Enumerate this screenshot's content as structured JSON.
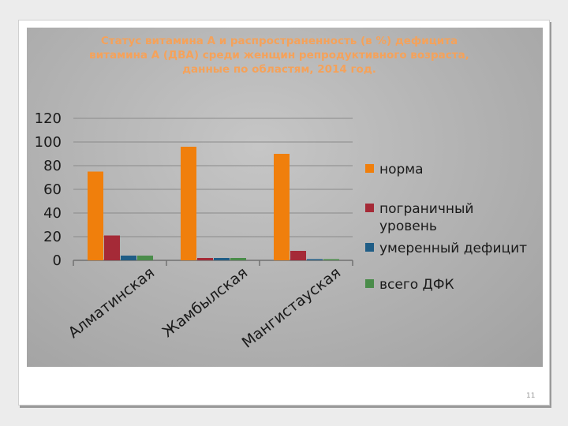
{
  "slide": {
    "page_number": "11"
  },
  "chart_data": {
    "type": "bar",
    "title": "Статус витамина А и распространенность (в %) дефицита витамина А (ДВА) среди женщин репродуктивного возраста, данные по областям, 2014 год.",
    "title_lines": [
      "Статус витамина А и распространенность (в %) дефицита",
      "витамина А (ДВА) среди женщин репродуктивного возраста,",
      "данные по областям, 2014 год."
    ],
    "categories": [
      "Алматинская",
      "Жамбылская",
      "Мангистауская"
    ],
    "series": [
      {
        "name": "норма",
        "name_lines": [
          "норма"
        ],
        "color": "#f07f0c",
        "values": [
          75,
          96,
          90
        ]
      },
      {
        "name": "пограничный уровень",
        "name_lines": [
          "пограничный",
          "уровень"
        ],
        "color": "#a52a37",
        "values": [
          21,
          2,
          8
        ]
      },
      {
        "name": "умеренный дефицит",
        "name_lines": [
          "умеренный дефицит"
        ],
        "color": "#1f5d86",
        "values": [
          4,
          2,
          1
        ]
      },
      {
        "name": "всего ДФК",
        "name_lines": [
          "всего ДФК"
        ],
        "color": "#4a8c4a",
        "values": [
          4,
          2,
          1
        ]
      }
    ],
    "yticks": [
      0,
      20,
      40,
      60,
      80,
      100,
      120
    ],
    "ylim": [
      0,
      120
    ],
    "grid": true,
    "legend_position": "right",
    "colors": {
      "title": "#f5a25a",
      "grid": "#8a8a8a",
      "axis": "#707070"
    }
  }
}
